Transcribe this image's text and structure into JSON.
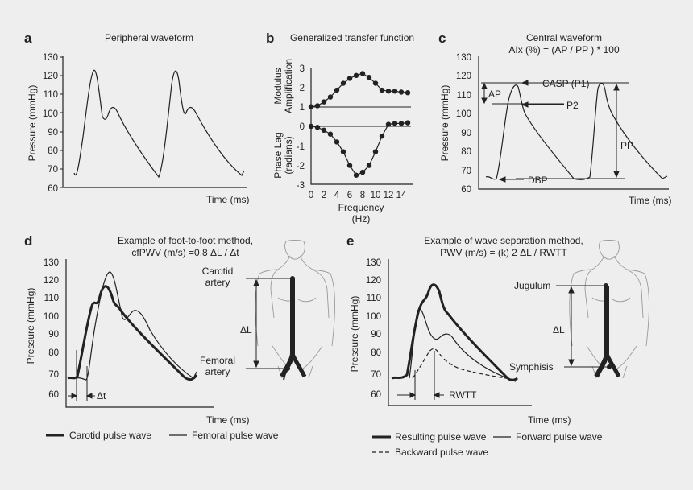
{
  "panels": {
    "a": {
      "label": "a",
      "title": "Peripheral waveform",
      "ylabel": "Pressure (mmHg)",
      "xlabel": "Time (ms)",
      "yticks": [
        "130",
        "120",
        "110",
        "100",
        "90",
        "80",
        "70",
        "60"
      ]
    },
    "b": {
      "label": "b",
      "title": "Generalized transfer function",
      "ylabel_top": [
        "Modulus",
        "Amplification"
      ],
      "ylabel_bottom": [
        "Phase Lag",
        "(radians)"
      ],
      "xlabel": [
        "Frequency",
        "(Hz)"
      ],
      "yticks_top": [
        "3",
        "2",
        "1",
        "0"
      ],
      "yticks_bottom": [
        "-1",
        "-2",
        "-3"
      ],
      "xticks": [
        "0",
        "2",
        "4",
        "6",
        "8",
        "10",
        "12",
        "14"
      ]
    },
    "c": {
      "label": "c",
      "title": "Central waveform",
      "formula": "AIx (%) = (AP / PP ) * 100",
      "ylabel": "Pressure (mmHg)",
      "xlabel": "Time (ms)",
      "yticks": [
        "130",
        "120",
        "110",
        "100",
        "90",
        "80",
        "70",
        "60"
      ],
      "annotations": {
        "casp": "CASP (P1)",
        "p2": "P2",
        "ap": "AP",
        "pp": "PP",
        "dbp": "DBP"
      }
    },
    "d": {
      "label": "d",
      "title": "Example of foot-to-foot method,",
      "formula": "cfPWV (m/s) =0.8 ΔL / Δt",
      "ylabel": "Pressure (mmHg)",
      "xlabel": "Time (ms)",
      "yticks": [
        "130",
        "120",
        "110",
        "100",
        "90",
        "80",
        "70",
        "60"
      ],
      "annotations": {
        "dt": "Δt",
        "carotid": [
          "Carotid",
          "artery"
        ],
        "femoral": [
          "Femoral",
          "artery"
        ],
        "dl": "ΔL"
      },
      "legend": [
        "Carotid pulse wave",
        "Femoral pulse wave"
      ]
    },
    "e": {
      "label": "e",
      "title": "Example of wave separation method,",
      "formula": "PWV (m/s) = (k) 2 ΔL / RWTT",
      "ylabel": "Pressure (mmHg)",
      "xlabel": "Time (ms)",
      "yticks": [
        "130",
        "120",
        "110",
        "100",
        "90",
        "80",
        "70",
        "60"
      ],
      "annotations": {
        "rwtt": "RWTT",
        "jugulum": "Jugulum",
        "symphisis": "Symphisis",
        "dl": "ΔL"
      },
      "legend": [
        "Resulting pulse wave",
        "Forward pulse wave",
        "Backward pulse wave"
      ]
    }
  },
  "transfer_function": {
    "frequency": [
      0,
      1,
      2,
      3,
      4,
      5,
      6,
      7,
      8,
      9,
      10,
      11,
      12,
      13,
      14,
      15
    ],
    "modulus": [
      1.0,
      1.05,
      1.25,
      1.5,
      1.85,
      2.2,
      2.45,
      2.6,
      2.7,
      2.5,
      2.2,
      1.85,
      1.8,
      1.8,
      1.75,
      1.72
    ],
    "phase": [
      0,
      -0.05,
      -0.2,
      -0.4,
      -0.8,
      -1.3,
      -2.0,
      -2.5,
      -2.35,
      -2.0,
      -1.3,
      -0.5,
      0.1,
      0.15,
      0.15,
      0.18
    ]
  }
}
